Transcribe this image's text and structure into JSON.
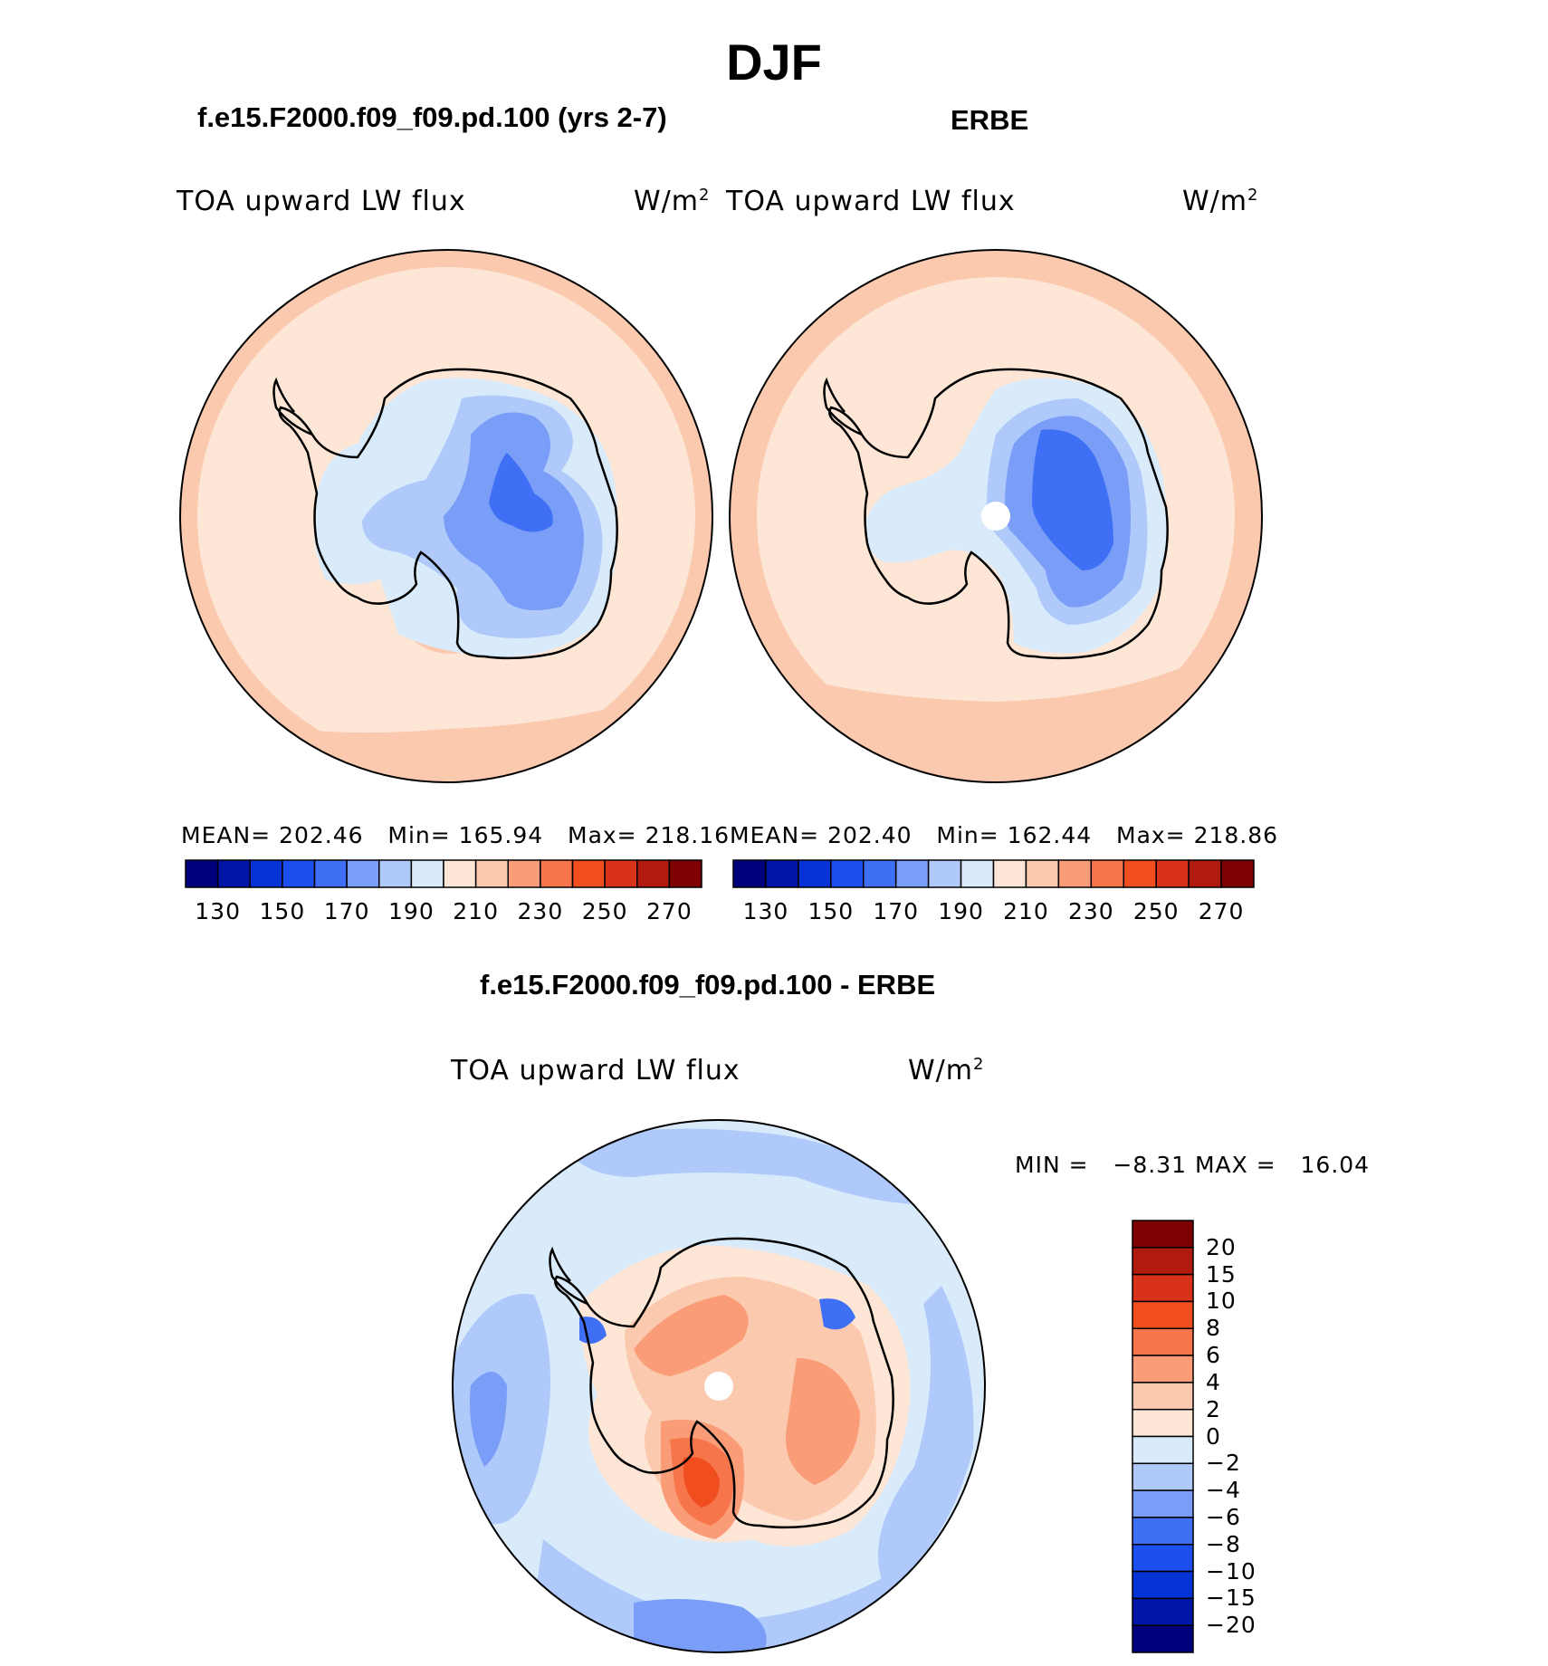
{
  "figure": {
    "title": "DJF",
    "season": "DJF"
  },
  "panels": {
    "model": {
      "title": "f.e15.F2000.f09_f09.pd.100 (yrs 2-7)",
      "variable": "TOA upward LW flux",
      "units_base": "W/m",
      "units_exp": "2",
      "stats": {
        "mean_label": "MEAN=",
        "mean": "202.46",
        "min_label": "Min=",
        "min": "165.94",
        "max_label": "Max=",
        "max": "218.16"
      }
    },
    "obs": {
      "title": "ERBE",
      "variable": "TOA upward LW flux",
      "units_base": "W/m",
      "units_exp": "2",
      "stats": {
        "mean_label": "MEAN=",
        "mean": "202.40",
        "min_label": "Min=",
        "min": "162.44",
        "max_label": "Max=",
        "max": "218.86"
      }
    },
    "diff": {
      "title": "f.e15.F2000.f09_f09.pd.100 - ERBE",
      "variable": "TOA upward LW flux",
      "units_base": "W/m",
      "units_exp": "2",
      "stats": {
        "min_label": "MIN =",
        "min": "−8.31",
        "max_label": "MAX =",
        "max": "16.04"
      }
    }
  },
  "chart_data": [
    {
      "type": "heatmap",
      "projection": "south-polar-stereographic",
      "title": "f.e15.F2000.f09_f09.pd.100 (yrs 2-7)",
      "variable": "TOA upward LW flux",
      "units": "W/m2",
      "mean": 202.46,
      "min": 165.94,
      "max": 218.16,
      "colorbar": {
        "orientation": "horizontal",
        "levels": [
          130,
          140,
          150,
          160,
          170,
          180,
          190,
          200,
          210,
          220,
          230,
          240,
          250,
          260,
          270
        ],
        "tick_labels": [
          "130",
          "150",
          "170",
          "190",
          "210",
          "230",
          "250",
          "270"
        ],
        "colors": [
          "#00007f",
          "#0016a8",
          "#0533d6",
          "#1d4fef",
          "#3f6ff5",
          "#7a9df7",
          "#aec9fa",
          "#d9ebfb",
          "#fde6d6",
          "#fbc9ae",
          "#fa9c78",
          "#f7754b",
          "#f04e1f",
          "#d8331a",
          "#b01a0f",
          "#7e0000"
        ]
      }
    },
    {
      "type": "heatmap",
      "projection": "south-polar-stereographic",
      "title": "ERBE",
      "variable": "TOA upward LW flux",
      "units": "W/m2",
      "mean": 202.4,
      "min": 162.44,
      "max": 218.86,
      "colorbar": {
        "orientation": "horizontal",
        "levels": [
          130,
          140,
          150,
          160,
          170,
          180,
          190,
          200,
          210,
          220,
          230,
          240,
          250,
          260,
          270
        ],
        "tick_labels": [
          "130",
          "150",
          "170",
          "190",
          "210",
          "230",
          "250",
          "270"
        ],
        "colors": [
          "#00007f",
          "#0016a8",
          "#0533d6",
          "#1d4fef",
          "#3f6ff5",
          "#7a9df7",
          "#aec9fa",
          "#d9ebfb",
          "#fde6d6",
          "#fbc9ae",
          "#fa9c78",
          "#f7754b",
          "#f04e1f",
          "#d8331a",
          "#b01a0f",
          "#7e0000"
        ]
      }
    },
    {
      "type": "heatmap",
      "projection": "south-polar-stereographic",
      "title": "f.e15.F2000.f09_f09.pd.100 - ERBE",
      "variable": "TOA upward LW flux",
      "units": "W/m2",
      "min": -8.31,
      "max": 16.04,
      "colorbar": {
        "orientation": "vertical",
        "levels": [
          20,
          15,
          10,
          8,
          6,
          4,
          2,
          0,
          -2,
          -4,
          -6,
          -8,
          -10,
          -15,
          -20
        ],
        "tick_labels": [
          "20",
          "15",
          "10",
          "8",
          "6",
          "4",
          "2",
          "0",
          "−2",
          "−4",
          "−6",
          "−8",
          "−10",
          "−15",
          "−20"
        ],
        "colors_top_to_bottom": [
          "#7e0000",
          "#b01a0f",
          "#d8331a",
          "#f04e1f",
          "#f7754b",
          "#fa9c78",
          "#fbc9ae",
          "#fde6d6",
          "#d9ebfb",
          "#aec9fa",
          "#7a9df7",
          "#3f6ff5",
          "#1d4fef",
          "#0533d6",
          "#0016a8",
          "#00007f"
        ]
      }
    }
  ]
}
